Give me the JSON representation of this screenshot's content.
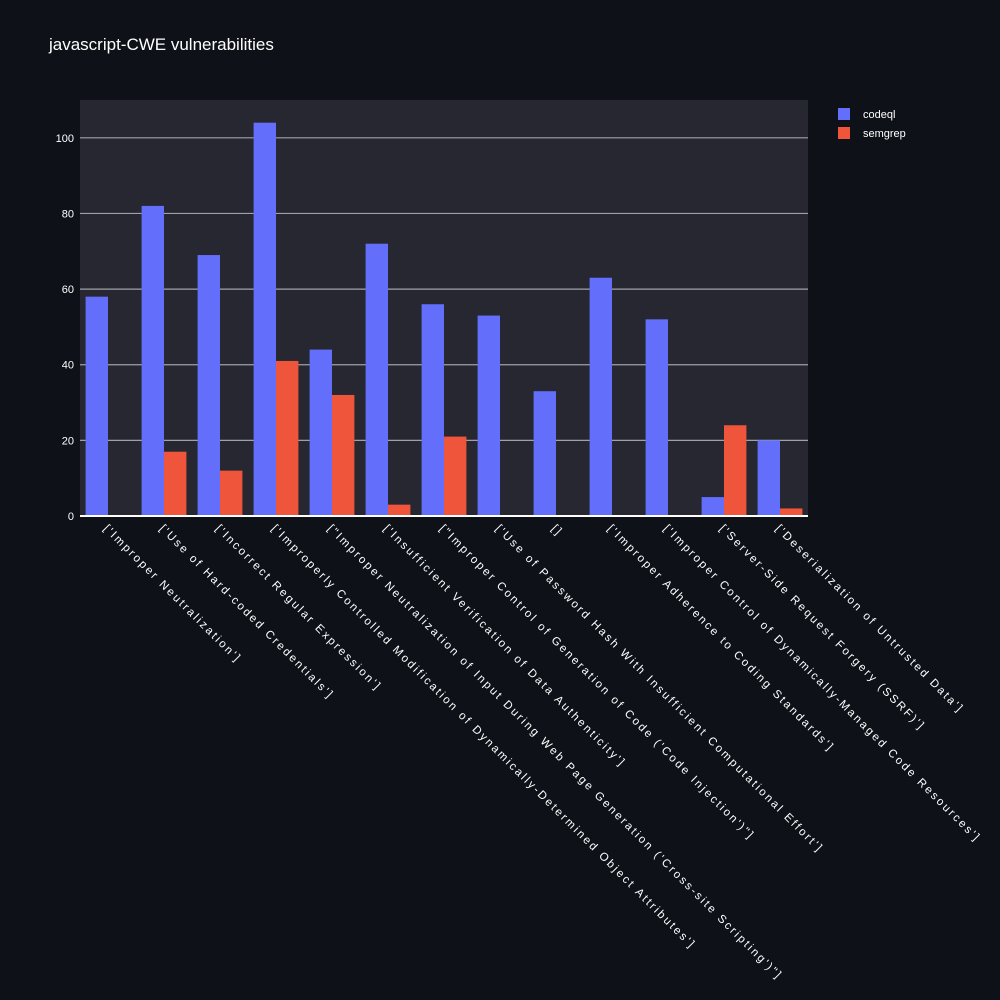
{
  "chart_data": {
    "type": "bar",
    "title": "javascript-CWE vulnerabilities",
    "xlabel": "",
    "ylabel": "",
    "ylim": [
      0,
      110
    ],
    "yticks": [
      0,
      20,
      40,
      60,
      80,
      100
    ],
    "grid": true,
    "legend_position": "top-right",
    "categories": [
      "['Improper Neutralization']",
      "['Use of Hard-coded Credentials']",
      "['Incorrect Regular Expression']",
      "['Improperly Controlled Modification of Dynamically-Determined Object Attributes']",
      "[\"Improper Neutralization of Input During Web Page Generation ('Cross-site Scripting')\"]",
      "['Insufficient Verification of Data Authenticity']",
      "[\"Improper Control of Generation of Code ('Code Injection')\"]",
      "['Use of Password Hash With Insufficient Computational Effort']",
      "[]",
      "['Improper Adherence to Coding Standards']",
      "['Improper Control of Dynamically-Managed Code Resources']",
      "['Server-Side Request Forgery (SSRF)']",
      "['Deserialization of Untrusted Data']"
    ],
    "series": [
      {
        "name": "codeql",
        "color": "#636efa",
        "values": [
          58,
          82,
          69,
          104,
          44,
          72,
          56,
          53,
          33,
          63,
          52,
          5,
          20
        ]
      },
      {
        "name": "semgrep",
        "color": "#ef553b",
        "values": [
          0,
          17,
          12,
          41,
          32,
          3,
          21,
          0,
          0,
          0,
          0,
          24,
          2
        ]
      }
    ]
  },
  "colors": {
    "background": "#0e1117",
    "plot_background": "#262730",
    "gridline": "#a0a0a8"
  }
}
